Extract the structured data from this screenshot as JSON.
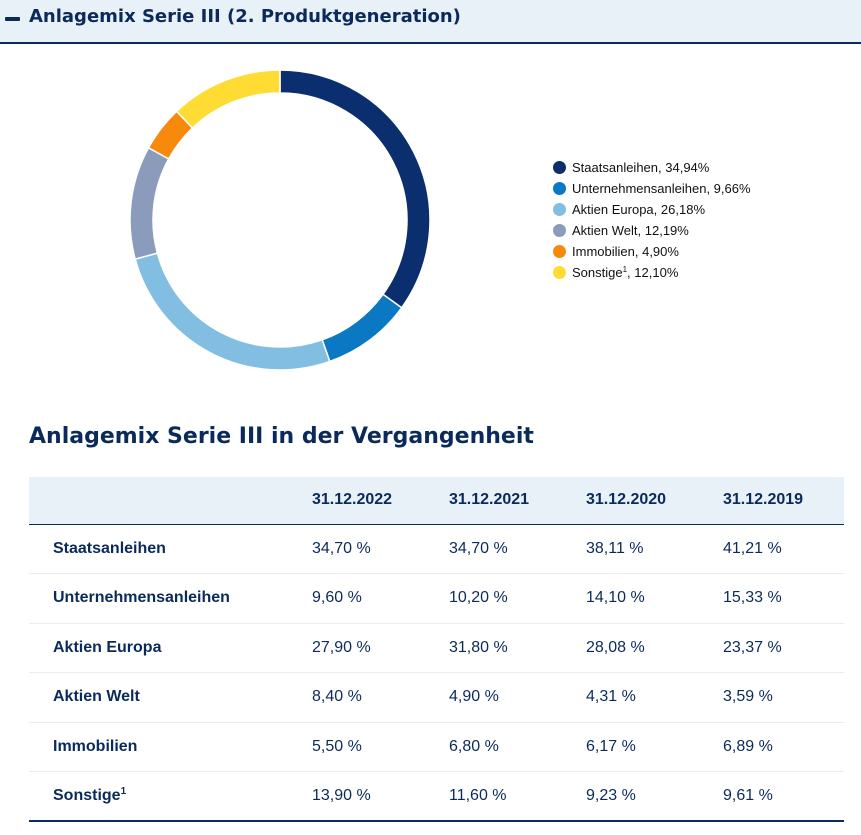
{
  "header": {
    "title": "Anlagemix Serie III (2. Produktgeneration)"
  },
  "chart_data": {
    "type": "pie",
    "variant": "doughnut",
    "title": "",
    "legend_position": "right",
    "slices": [
      {
        "label": "Staatsanleihen",
        "value": 34.94,
        "display": "34,94%",
        "color": "#0b2e6f"
      },
      {
        "label": "Unternehmensanleihen",
        "value": 9.66,
        "display": "9,66%",
        "color": "#0a78c2"
      },
      {
        "label": "Aktien Europa",
        "value": 26.18,
        "display": "26,18%",
        "color": "#82bde2"
      },
      {
        "label": "Aktien Welt",
        "value": 12.19,
        "display": "12,19%",
        "color": "#8a9bbb"
      },
      {
        "label": "Immobilien",
        "value": 4.9,
        "display": "4,90%",
        "color": "#f7890c"
      },
      {
        "label": "Sonstige",
        "label_sup": "1",
        "value": 12.1,
        "display": "12,10%",
        "color": "#fedc33"
      }
    ]
  },
  "history": {
    "title": "Anlagemix Serie III in der Vergangenheit",
    "columns": [
      "",
      "31.12.2022",
      "31.12.2021",
      "31.12.2020",
      "31.12.2019"
    ],
    "rows": [
      {
        "label": "Staatsanleihen",
        "values": [
          "34,70 %",
          "34,70 %",
          "38,11 %",
          "41,21 %"
        ]
      },
      {
        "label": "Unternehmensanleihen",
        "values": [
          "9,60 %",
          "10,20 %",
          "14,10 %",
          "15,33 %"
        ]
      },
      {
        "label": "Aktien Europa",
        "values": [
          "27,90 %",
          "31,80 %",
          "28,08 %",
          "23,37 %"
        ]
      },
      {
        "label": "Aktien Welt",
        "values": [
          "8,40 %",
          "4,90 %",
          "4,31 %",
          "3,59 %"
        ]
      },
      {
        "label": "Immobilien",
        "values": [
          "5,50 %",
          "6,80 %",
          "6,17 %",
          "6,89 %"
        ]
      },
      {
        "label": "Sonstige",
        "label_sup": "1",
        "values": [
          "13,90 %",
          "11,60 %",
          "9,23 %",
          "9,61 %"
        ]
      }
    ]
  }
}
